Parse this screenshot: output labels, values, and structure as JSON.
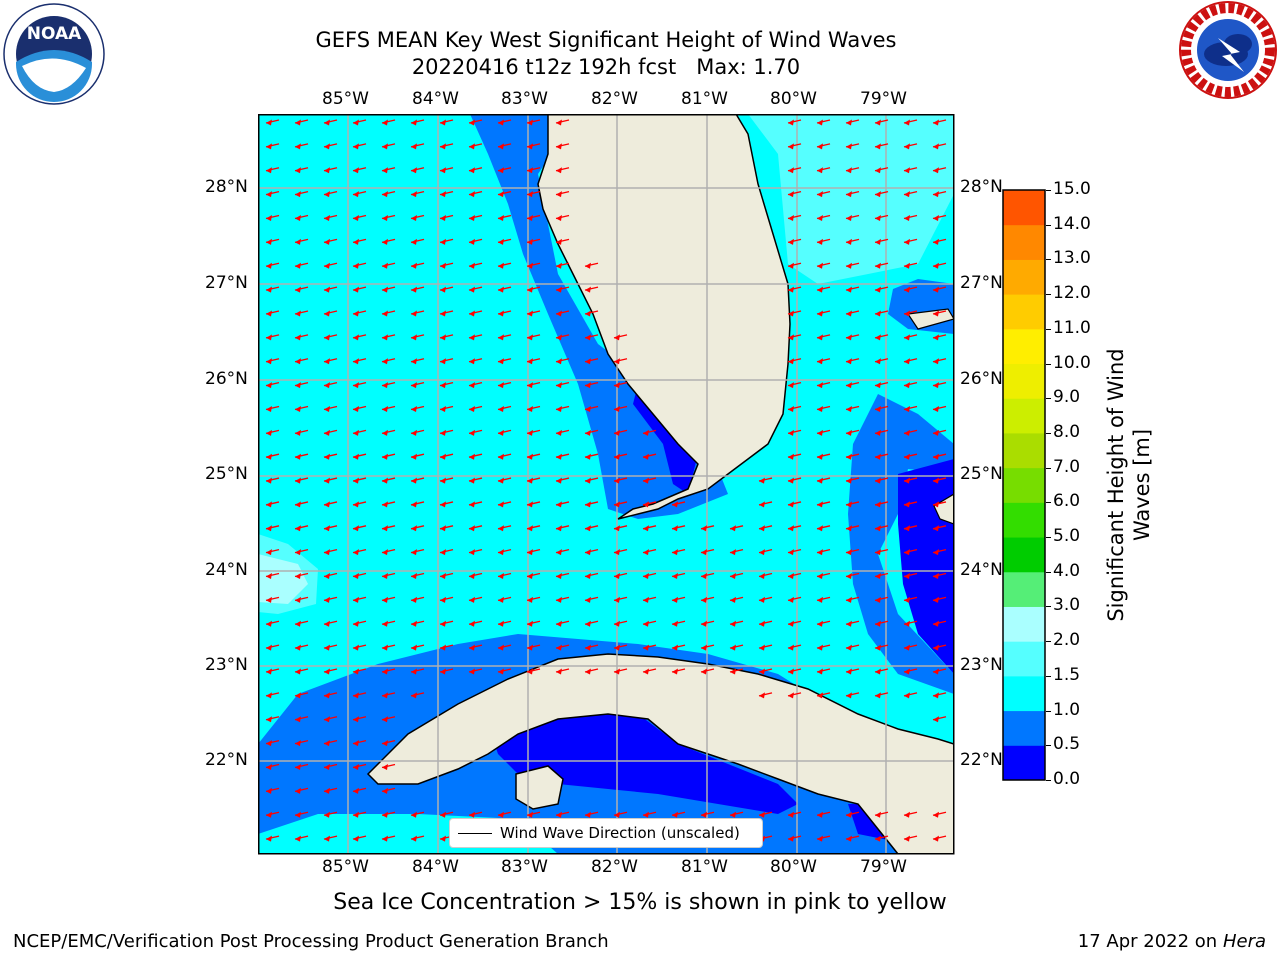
{
  "title": {
    "line1": "GEFS MEAN Key West Significant Height of Wind Waves",
    "line2": "20220416 t12z 192h fcst   Max: 1.70"
  },
  "logos": {
    "left": "NOAA",
    "left_ring_text": "NATIONAL OCEANIC AND ATMOSPHERIC ADMINISTRATION · U.S. DEPARTMENT OF COMMERCE",
    "right_ring_text": "NATIONAL WEATHER SERVICE"
  },
  "map": {
    "lon_labels": [
      "85°W",
      "84°W",
      "83°W",
      "82°W",
      "81°W",
      "80°W",
      "79°W"
    ],
    "lat_labels": [
      "28°N",
      "27°N",
      "26°N",
      "25°N",
      "24°N",
      "23°N",
      "22°N"
    ],
    "legend": "Wind Wave Direction (unscaled)",
    "colors": {
      "land": "#eeecdc",
      "bin_0_0.5": "#0000ff",
      "bin_0.5_1": "#0077ff",
      "bin_1_1.5": "#00ffff",
      "bin_1.5_2": "#55ffff",
      "bin_2_3": "#aaffff",
      "arrow": "#ff0000",
      "coast": "#000000",
      "grid": "#b0b0b0"
    }
  },
  "colorbar": {
    "label_line1": "Significant Height of Wind",
    "label_line2": "Waves [m]",
    "ticks": [
      "15.0",
      "14.0",
      "13.0",
      "12.0",
      "11.0",
      "10.0",
      "9.0",
      "8.0",
      "7.0",
      "6.0",
      "5.0",
      "4.0",
      "3.0",
      "2.0",
      "1.5",
      "1.0",
      "0.5",
      "0.0"
    ],
    "colors": [
      "#0000ff",
      "#0077ff",
      "#00ffff",
      "#55ffff",
      "#aaffff",
      "#55ee77",
      "#00cc00",
      "#33dd00",
      "#77dd00",
      "#aadd00",
      "#ccee00",
      "#eeee00",
      "#ffee00",
      "#ffcc00",
      "#ffaa00",
      "#ff8800",
      "#ff5500",
      "#ff3300",
      "#ff0000"
    ]
  },
  "notes": {
    "sea_ice": "Sea Ice Concentration > 15% is shown in pink to yellow"
  },
  "footer": {
    "left": "NCEP/EMC/Verification Post Processing Product Generation Branch",
    "right_date": "17 Apr 2022 on ",
    "right_machine": "Hera"
  }
}
